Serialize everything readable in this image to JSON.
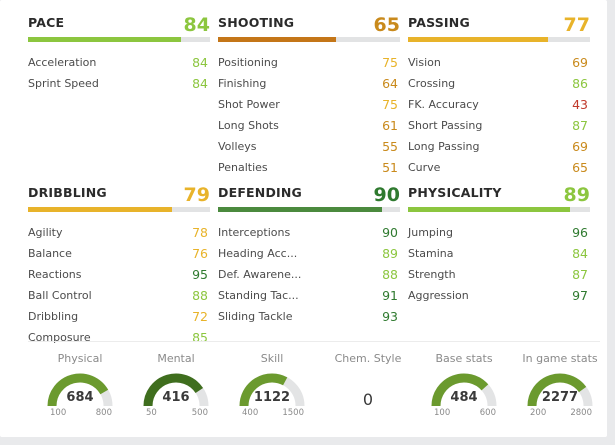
{
  "colors": {
    "excellent": "#2f7a2f",
    "verygood": "#5aa321",
    "good": "#8cc63f",
    "average": "#e8b32a",
    "fair": "#c98a1c",
    "poor": "#c0392b",
    "shooting_bar": "#c47618",
    "defending_bar": "#4b8a3e"
  },
  "attributes": [
    {
      "name": "PACE",
      "value": "84",
      "tone": "good",
      "fill": 0.84,
      "stats": [
        {
          "label": "Acceleration",
          "value": "84",
          "tone": "good"
        },
        {
          "label": "Sprint Speed",
          "value": "84",
          "tone": "good"
        }
      ]
    },
    {
      "name": "SHOOTING",
      "value": "65",
      "tone": "fair",
      "fill": 0.65,
      "bar_tone": "shooting_bar",
      "stats": [
        {
          "label": "Positioning",
          "value": "75",
          "tone": "average"
        },
        {
          "label": "Finishing",
          "value": "64",
          "tone": "fair"
        },
        {
          "label": "Shot Power",
          "value": "75",
          "tone": "average"
        },
        {
          "label": "Long Shots",
          "value": "61",
          "tone": "fair"
        },
        {
          "label": "Volleys",
          "value": "55",
          "tone": "fair"
        },
        {
          "label": "Penalties",
          "value": "51",
          "tone": "fair"
        }
      ]
    },
    {
      "name": "PASSING",
      "value": "77",
      "tone": "average",
      "fill": 0.77,
      "stats": [
        {
          "label": "Vision",
          "value": "69",
          "tone": "fair"
        },
        {
          "label": "Crossing",
          "value": "86",
          "tone": "good"
        },
        {
          "label": "FK. Accuracy",
          "value": "43",
          "tone": "poor"
        },
        {
          "label": "Short Passing",
          "value": "87",
          "tone": "good"
        },
        {
          "label": "Long Passing",
          "value": "69",
          "tone": "fair"
        },
        {
          "label": "Curve",
          "value": "65",
          "tone": "fair"
        }
      ]
    },
    {
      "name": "DRIBBLING",
      "value": "79",
      "tone": "average",
      "fill": 0.79,
      "stats": [
        {
          "label": "Agility",
          "value": "78",
          "tone": "average"
        },
        {
          "label": "Balance",
          "value": "76",
          "tone": "average"
        },
        {
          "label": "Reactions",
          "value": "95",
          "tone": "excellent"
        },
        {
          "label": "Ball Control",
          "value": "88",
          "tone": "good"
        },
        {
          "label": "Dribbling",
          "value": "72",
          "tone": "average"
        },
        {
          "label": "Composure",
          "value": "85",
          "tone": "good"
        }
      ]
    },
    {
      "name": "DEFENDING",
      "value": "90",
      "tone": "excellent",
      "fill": 0.9,
      "bar_tone": "defending_bar",
      "stats": [
        {
          "label": "Interceptions",
          "value": "90",
          "tone": "excellent"
        },
        {
          "label": "Heading Acc...",
          "value": "89",
          "tone": "good"
        },
        {
          "label": "Def. Awarene...",
          "value": "88",
          "tone": "good"
        },
        {
          "label": "Standing Tac...",
          "value": "91",
          "tone": "excellent"
        },
        {
          "label": "Sliding Tackle",
          "value": "93",
          "tone": "excellent"
        }
      ]
    },
    {
      "name": "PHYSICALITY",
      "value": "89",
      "tone": "good",
      "fill": 0.89,
      "stats": [
        {
          "label": "Jumping",
          "value": "96",
          "tone": "excellent"
        },
        {
          "label": "Stamina",
          "value": "84",
          "tone": "good"
        },
        {
          "label": "Strength",
          "value": "87",
          "tone": "good"
        },
        {
          "label": "Aggression",
          "value": "97",
          "tone": "excellent"
        }
      ]
    }
  ],
  "gauges": [
    {
      "title": "Physical",
      "value": "684",
      "min": "100",
      "max": "800",
      "fill": 0.834,
      "tone": "gauge_green"
    },
    {
      "title": "Mental",
      "value": "416",
      "min": "50",
      "max": "500",
      "fill": 0.813,
      "tone": "gauge_dark"
    },
    {
      "title": "Skill",
      "value": "1122",
      "min": "400",
      "max": "1500",
      "fill": 0.656,
      "tone": "gauge_green"
    },
    {
      "title": "Chem. Style",
      "value": "0",
      "type": "text"
    },
    {
      "title": "Base stats",
      "value": "484",
      "min": "100",
      "max": "600",
      "fill": 0.768,
      "tone": "gauge_green"
    },
    {
      "title": "In game stats",
      "value": "2277",
      "min": "200",
      "max": "2800",
      "fill": 0.799,
      "tone": "gauge_green"
    }
  ],
  "gauge_colors": {
    "gauge_green": "#6b9a2e",
    "gauge_dark": "#3f6e1e",
    "track": "#e3e4e5"
  }
}
